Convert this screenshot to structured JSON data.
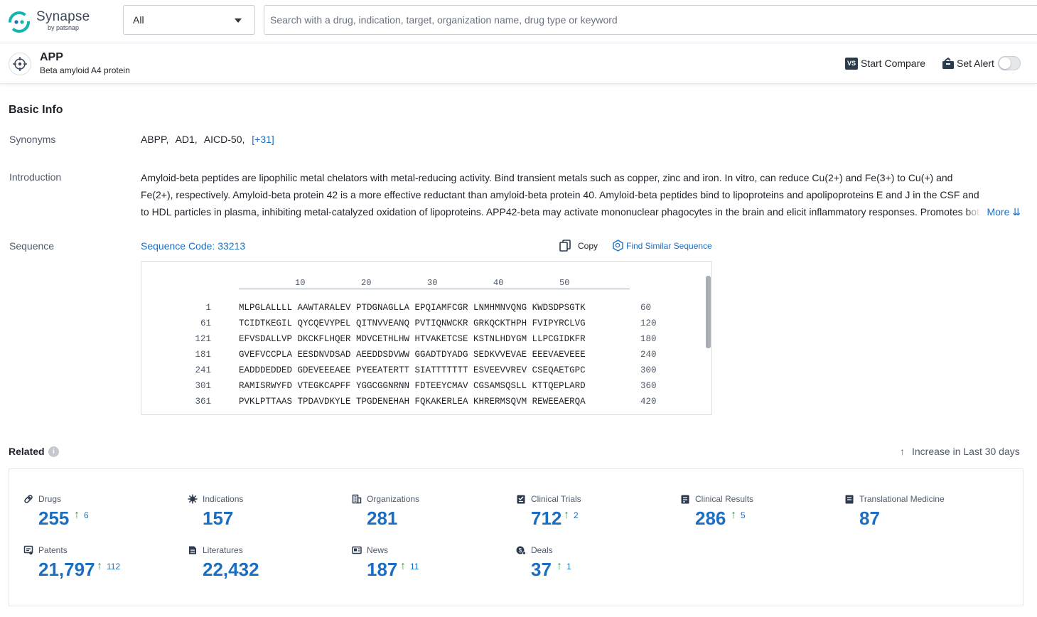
{
  "brand": {
    "name": "Synapse",
    "by": "by patsnap"
  },
  "search": {
    "scope_value": "All",
    "placeholder": "Search with a drug, indication, target, organization name, drug type or keyword"
  },
  "entity": {
    "name": "APP",
    "subtitle": "Beta amyloid A4 protein",
    "compare_label": "Start Compare",
    "alert_label": "Set Alert",
    "alert_on": false
  },
  "basic_info": {
    "title": "Basic Info",
    "synonyms_label": "Synonyms",
    "synonyms": [
      "ABPP,",
      "AD1,",
      "AICD-50,"
    ],
    "synonyms_more": "[+31]",
    "introduction_label": "Introduction",
    "introduction": "Amyloid-beta peptides are lipophilic metal chelators with metal-reducing activity. Bind transient metals such as copper, zinc and iron. In vitro, can reduce Cu(2+) and Fe(3+) to Cu(+) and Fe(2+), respectively. Amyloid-beta protein 42 is a more effective reductant than amyloid-beta protein 40. Amyloid-beta peptides bind to lipoproteins and apolipoproteins E and J in the CSF and to HDL particles in plasma, inhibiting metal-catalyzed oxidation of lipoproteins. APP42-beta may activate mononuclear phagocytes in the brain and elicit inflammatory responses. Promotes both tau aggregation",
    "more_label": "More",
    "sequence_label": "Sequence",
    "sequence_code": "Sequence Code: 33213",
    "copy_label": "Copy",
    "find_similar_label": "Find Similar Sequence",
    "ruler": [
      "10",
      "20",
      "30",
      "40",
      "50"
    ],
    "sequence_rows": [
      {
        "start": "1",
        "residues": "MLPGLALLLL AAWTARALEV PTDGNAGLLA EPQIAMFCGR LNMHMNVQNG KWDSDPSGTK",
        "end": "60"
      },
      {
        "start": "61",
        "residues": "TCIDTKEGIL QYCQEVYPEL QITNVVEANQ PVTIQNWCKR GRKQCKTHPH FVIPYRCLVG",
        "end": "120"
      },
      {
        "start": "121",
        "residues": "EFVSDALLVP DKCKFLHQER MDVCETHLHW HTVAKETCSE KSTNLHDYGM LLPCGIDKFR",
        "end": "180"
      },
      {
        "start": "181",
        "residues": "GVEFVCCPLA EESDNVDSAD AEEDDSDVWW GGADTDYADG SEDKVVEVAE EEEVAEVEEE",
        "end": "240"
      },
      {
        "start": "241",
        "residues": "EADDDEDDED GDEVEEEAEE PYEEATERTT SIATTTTTTT ESVEEVVREV CSEQAETGPC",
        "end": "300"
      },
      {
        "start": "301",
        "residues": "RAMISRWYFD VTEGKCAPFF YGGCGGNRNN FDTEEYCMAV CGSAMSQSLL KTTQEPLARD",
        "end": "360"
      },
      {
        "start": "361",
        "residues": "PVKLPTTAAS TPDAVDKYLE TPGDENEHAH FQKAKERLEA KHRERMSQVM REWEEAERQA",
        "end": "420"
      }
    ]
  },
  "related": {
    "title": "Related",
    "legend": "Increase in Last 30 days",
    "stats": [
      {
        "label": "Drugs",
        "value": "255",
        "increase": "6",
        "icon": "pill-icon"
      },
      {
        "label": "Indications",
        "value": "157",
        "increase": "",
        "icon": "virus-icon"
      },
      {
        "label": "Organizations",
        "value": "281",
        "increase": "",
        "icon": "building-icon"
      },
      {
        "label": "Clinical Trials",
        "value": "712",
        "increase": "2",
        "icon": "clipboard-icon"
      },
      {
        "label": "Clinical Results",
        "value": "286",
        "increase": "5",
        "icon": "report-icon"
      },
      {
        "label": "Translational Medicine",
        "value": "87",
        "increase": "",
        "icon": "document-icon"
      },
      {
        "label": "Patents",
        "value": "21,797",
        "increase": "112",
        "icon": "patent-icon"
      },
      {
        "label": "Literatures",
        "value": "22,432",
        "increase": "",
        "icon": "literature-icon"
      },
      {
        "label": "News",
        "value": "187",
        "increase": "11",
        "icon": "newspaper-icon"
      },
      {
        "label": "Deals",
        "value": "37",
        "increase": "1",
        "icon": "deal-icon"
      }
    ]
  },
  "colors": {
    "accent": "#1b6ec2",
    "increase": "#2e9e3f",
    "brand_teal": "#12b5b0"
  }
}
